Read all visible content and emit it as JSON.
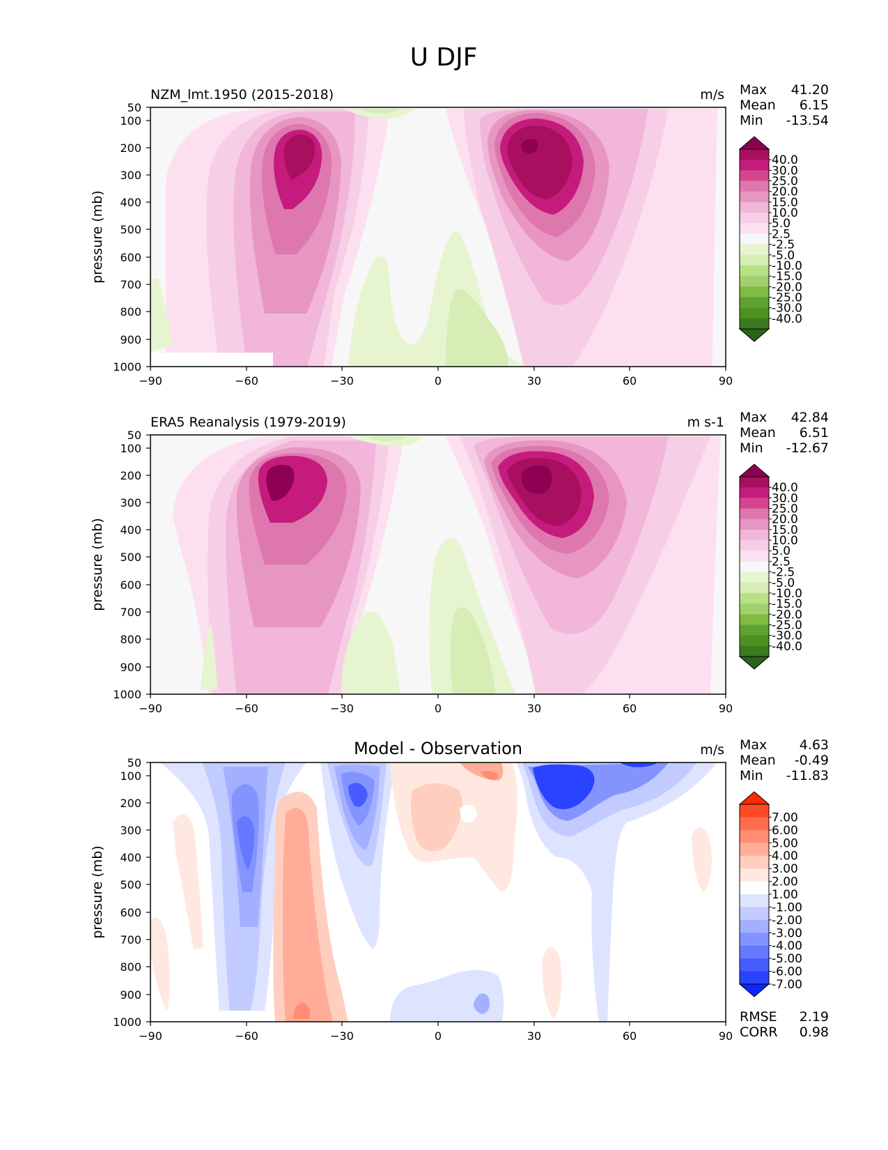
{
  "figure_title": "U DJF",
  "chart_data": [
    {
      "type": "heatmap",
      "title": "NZM_lmt.1950 (2015-2018)",
      "units": "m/s",
      "xlabel": "",
      "ylabel": "pressure (mb)",
      "x_ticks": [
        "−90",
        "−60",
        "−30",
        "0",
        "30",
        "60",
        "90"
      ],
      "y_ticks": [
        "50",
        "100",
        "200",
        "300",
        "400",
        "500",
        "600",
        "700",
        "800",
        "900",
        "1000"
      ],
      "xlim": [
        -90,
        90
      ],
      "ylim": [
        1000,
        50
      ],
      "stats": {
        "max_label": "Max",
        "max": "41.20",
        "mean_label": "Mean",
        "mean": "6.15",
        "min_label": "Min",
        "min": "-13.54"
      },
      "colorbar_labels": [
        "40.0",
        "30.0",
        "25.0",
        "20.0",
        "15.0",
        "10.0",
        "5.0",
        "2.5",
        "-2.5",
        "-5.0",
        "-10.0",
        "-15.0",
        "-20.0",
        "-25.0",
        "-30.0",
        "-40.0"
      ],
      "colorbar_colors": [
        "#8e0152",
        "#a8105f",
        "#c51b7d",
        "#d5458f",
        "#de77ae",
        "#e796c1",
        "#f1b6da",
        "#f6cfe6",
        "#fde0ef",
        "#f7f7f7",
        "#e6f5d0",
        "#d6edb6",
        "#b8e186",
        "#a1d06f",
        "#7fbc41",
        "#5fa233",
        "#4d9221",
        "#3b7a1e",
        "#276419"
      ],
      "features": [
        {
          "lat": -47,
          "p": 250,
          "value": 35
        },
        {
          "lat": 30,
          "p": 230,
          "value": 41.2
        },
        {
          "lat": 5,
          "p": 850,
          "value": -8
        },
        {
          "lat": -20,
          "p": 800,
          "value": -3
        },
        {
          "lat": -5,
          "p": 60,
          "value": -13.5
        }
      ]
    },
    {
      "type": "heatmap",
      "title": "ERA5 Reanalysis (1979-2019)",
      "units": "m s-1",
      "xlabel": "",
      "ylabel": "pressure (mb)",
      "x_ticks": [
        "−90",
        "−60",
        "−30",
        "0",
        "30",
        "60",
        "90"
      ],
      "y_ticks": [
        "50",
        "100",
        "200",
        "300",
        "400",
        "500",
        "600",
        "700",
        "800",
        "900",
        "1000"
      ],
      "xlim": [
        -90,
        90
      ],
      "ylim": [
        1000,
        50
      ],
      "stats": {
        "max_label": "Max",
        "max": "42.84",
        "mean_label": "Mean",
        "mean": "6.51",
        "min_label": "Min",
        "min": "-12.67"
      },
      "colorbar_labels": [
        "40.0",
        "30.0",
        "25.0",
        "20.0",
        "15.0",
        "10.0",
        "5.0",
        "2.5",
        "-2.5",
        "-5.0",
        "-10.0",
        "-15.0",
        "-20.0",
        "-25.0",
        "-30.0",
        "-40.0"
      ],
      "colorbar_colors": [
        "#8e0152",
        "#a8105f",
        "#c51b7d",
        "#d5458f",
        "#de77ae",
        "#e796c1",
        "#f1b6da",
        "#f6cfe6",
        "#fde0ef",
        "#f7f7f7",
        "#e6f5d0",
        "#d6edb6",
        "#b8e186",
        "#a1d06f",
        "#7fbc41",
        "#5fa233",
        "#4d9221",
        "#3b7a1e",
        "#276419"
      ],
      "features": [
        {
          "lat": -49,
          "p": 260,
          "value": 36
        },
        {
          "lat": 31,
          "p": 210,
          "value": 42.8
        },
        {
          "lat": 6,
          "p": 850,
          "value": -8
        },
        {
          "lat": -20,
          "p": 850,
          "value": -4
        },
        {
          "lat": -5,
          "p": 55,
          "value": -12.7
        }
      ]
    },
    {
      "type": "heatmap",
      "title": "Model - Observation",
      "units": "m/s",
      "xlabel": "",
      "ylabel": "pressure (mb)",
      "x_ticks": [
        "−90",
        "−60",
        "−30",
        "0",
        "30",
        "60",
        "90"
      ],
      "y_ticks": [
        "50",
        "100",
        "200",
        "300",
        "400",
        "500",
        "600",
        "700",
        "800",
        "900",
        "1000"
      ],
      "xlim": [
        -90,
        90
      ],
      "ylim": [
        1000,
        50
      ],
      "stats": {
        "max_label": "Max",
        "max": "4.63",
        "mean_label": "Mean",
        "mean": "-0.49",
        "min_label": "Min",
        "min": "-11.83",
        "rmse_label": "RMSE",
        "rmse": "2.19",
        "corr_label": "CORR",
        "corr": "0.98"
      },
      "colorbar_labels": [
        "7.00",
        "6.00",
        "5.00",
        "4.00",
        "3.00",
        "2.00",
        "1.00",
        "-1.00",
        "-2.00",
        "-3.00",
        "-4.00",
        "-5.00",
        "-6.00",
        "-7.00"
      ],
      "colorbar_colors": [
        "#ff2a00",
        "#ff4a26",
        "#ff6b4d",
        "#ff8c73",
        "#ffad99",
        "#ffcebf",
        "#ffe8e0",
        "#ffffff",
        "#dee3ff",
        "#c2cbff",
        "#a3b0ff",
        "#8494ff",
        "#6678ff",
        "#475cff",
        "#2943ff",
        "#0a28ff"
      ],
      "features": [
        {
          "lat": 38,
          "p": 150,
          "value": -11.8
        },
        {
          "lat": -60,
          "p": 350,
          "value": -6
        },
        {
          "lat": -25,
          "p": 150,
          "value": -6
        },
        {
          "lat": -40,
          "p": 600,
          "value": 3
        },
        {
          "lat": 20,
          "p": 100,
          "value": 4.6
        },
        {
          "lat": 65,
          "p": 80,
          "value": -7
        }
      ]
    }
  ]
}
